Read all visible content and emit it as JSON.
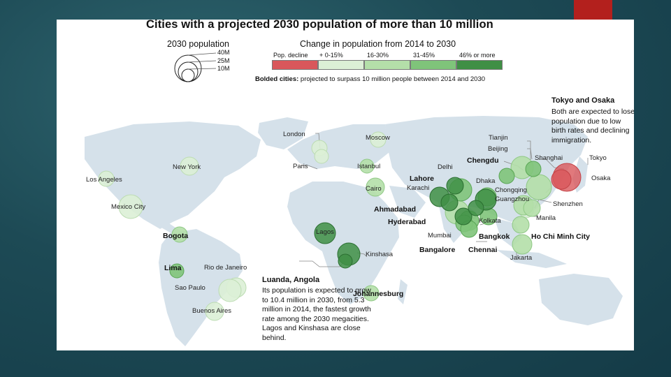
{
  "title": "Cities with a projected 2030 population of more than 10 million",
  "legend": {
    "size_title": "2030 population",
    "size_items": [
      "40M",
      "25M",
      "10M"
    ],
    "color_title": "Change in population from 2014 to 2030",
    "color_items": [
      {
        "label": "Pop. decline",
        "color": "#d9575b"
      },
      {
        "label": "+ 0-15%",
        "color": "#dcefd6"
      },
      {
        "label": "16-30%",
        "color": "#b4dfa9"
      },
      {
        "label": "31-45%",
        "color": "#7fc47a"
      },
      {
        "label": "46% or more",
        "color": "#3f8f45"
      }
    ],
    "bolded_prefix": "Bolded cities:",
    "bolded_text": " projected to surpass 10 million people between 2014 and 2030"
  },
  "notes": {
    "tokyo_osaka": {
      "title": "Tokyo and Osaka",
      "body": "Both are expected to lose population due to low birth rates and declining immigration."
    },
    "luanda": {
      "title": "Luanda, Angola",
      "body": "Its population is expected to grow to 10.4 million in 2030, from 5.3 million in 2014, the fastest growth rate among the 2030 megacities. Lagos and Kinshasa are close behind."
    }
  },
  "cities": [
    {
      "name": "London",
      "bold": false
    },
    {
      "name": "Moscow",
      "bold": false
    },
    {
      "name": "Paris",
      "bold": false
    },
    {
      "name": "Istanbul",
      "bold": false
    },
    {
      "name": "Cairo",
      "bold": false
    },
    {
      "name": "Los Angeles",
      "bold": false
    },
    {
      "name": "New York",
      "bold": false
    },
    {
      "name": "Mexico City",
      "bold": false
    },
    {
      "name": "Bogota",
      "bold": true
    },
    {
      "name": "Lima",
      "bold": true
    },
    {
      "name": "Rio de Janeiro",
      "bold": false
    },
    {
      "name": "Sao Paulo",
      "bold": false
    },
    {
      "name": "Buenos Aires",
      "bold": false
    },
    {
      "name": "Lagos",
      "bold": false
    },
    {
      "name": "Kinshasa",
      "bold": false
    },
    {
      "name": "Johannesburg",
      "bold": true
    },
    {
      "name": "Tianjin",
      "bold": false
    },
    {
      "name": "Beijing",
      "bold": false
    },
    {
      "name": "Chengdu",
      "bold": true
    },
    {
      "name": "Delhi",
      "bold": false
    },
    {
      "name": "Lahore",
      "bold": true
    },
    {
      "name": "Karachi",
      "bold": false
    },
    {
      "name": "Dhaka",
      "bold": false
    },
    {
      "name": "Chongqing",
      "bold": false
    },
    {
      "name": "Guangzhou",
      "bold": false
    },
    {
      "name": "Shanghai",
      "bold": false
    },
    {
      "name": "Tokyo",
      "bold": false
    },
    {
      "name": "Osaka",
      "bold": false
    },
    {
      "name": "Shenzhen",
      "bold": false
    },
    {
      "name": "Ahmadabad",
      "bold": true
    },
    {
      "name": "Hyderabad",
      "bold": true
    },
    {
      "name": "Mumbai",
      "bold": false
    },
    {
      "name": "Kolkata",
      "bold": false
    },
    {
      "name": "Manila",
      "bold": false
    },
    {
      "name": "Bangkok",
      "bold": true
    },
    {
      "name": "Ho Chi Minh City",
      "bold": true
    },
    {
      "name": "Bangalore",
      "bold": true
    },
    {
      "name": "Chennai",
      "bold": true
    },
    {
      "name": "Jakarta",
      "bold": false
    }
  ]
}
